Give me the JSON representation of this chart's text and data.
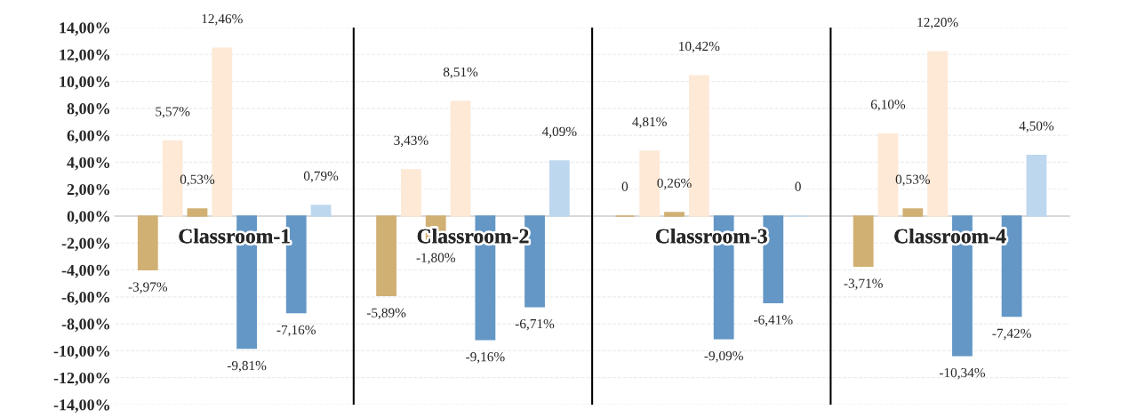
{
  "chart_data": {
    "type": "bar",
    "categories": [
      "Classroom-1",
      "Classroom-2",
      "Classroom-3",
      "Classroom-4"
    ],
    "series": [
      {
        "color": "#d1b074",
        "values": [
          -3.97,
          -5.89,
          0,
          -3.71
        ],
        "value_labels": [
          "-3,97%",
          "-5,89%",
          "0",
          "-3,71%"
        ]
      },
      {
        "color": "#fde9d6",
        "values": [
          5.57,
          3.43,
          4.81,
          6.1
        ],
        "value_labels": [
          "5,57%",
          "3,43%",
          "4,81%",
          "6,10%"
        ]
      },
      {
        "color": "#d1b074",
        "values": [
          0.53,
          -1.8,
          0.26,
          0.53
        ],
        "value_labels": [
          "0,53%",
          "-1,80%",
          "0,26%",
          "0,53%"
        ]
      },
      {
        "color": "#fde9d6",
        "values": [
          12.46,
          8.51,
          10.42,
          12.2
        ],
        "value_labels": [
          "12,46%",
          "8,51%",
          "10,42%",
          "12,20%"
        ]
      },
      {
        "color": "#6497c6",
        "values": [
          -9.81,
          -9.16,
          -9.09,
          -10.34
        ],
        "value_labels": [
          "-9,81%",
          "-9,16%",
          "-9,09%",
          "-10,34%"
        ]
      },
      {
        "color": "#6497c6",
        "values": [
          -7.16,
          -6.71,
          -6.41,
          -7.42
        ],
        "value_labels": [
          "-7,16%",
          "-6,71%",
          "-6,41%",
          "-7,42%"
        ]
      },
      {
        "color": "#bdd7ee",
        "values": [
          0.79,
          4.09,
          0,
          4.5
        ],
        "value_labels": [
          "0,79%",
          "4,09%",
          "0",
          "4,50%"
        ]
      }
    ],
    "ylim": [
      -14,
      14
    ],
    "yticks": [
      {
        "value": -14,
        "label": "-14,00%"
      },
      {
        "value": -12,
        "label": "-12,00%"
      },
      {
        "value": -10,
        "label": "-10,00%"
      },
      {
        "value": -8,
        "label": "-8,00%"
      },
      {
        "value": -6,
        "label": "-6,00%"
      },
      {
        "value": -4,
        "label": "-4,00%"
      },
      {
        "value": -2,
        "label": "-2,00%"
      },
      {
        "value": 0,
        "label": "0,00%"
      },
      {
        "value": 2,
        "label": "2,00%"
      },
      {
        "value": 4,
        "label": "4,00%"
      },
      {
        "value": 6,
        "label": "6,00%"
      },
      {
        "value": 8,
        "label": "8,00%"
      },
      {
        "value": 10,
        "label": "10,00%"
      },
      {
        "value": 12,
        "label": "12,00%"
      },
      {
        "value": 14,
        "label": "14,00%"
      }
    ],
    "grid": "y"
  }
}
